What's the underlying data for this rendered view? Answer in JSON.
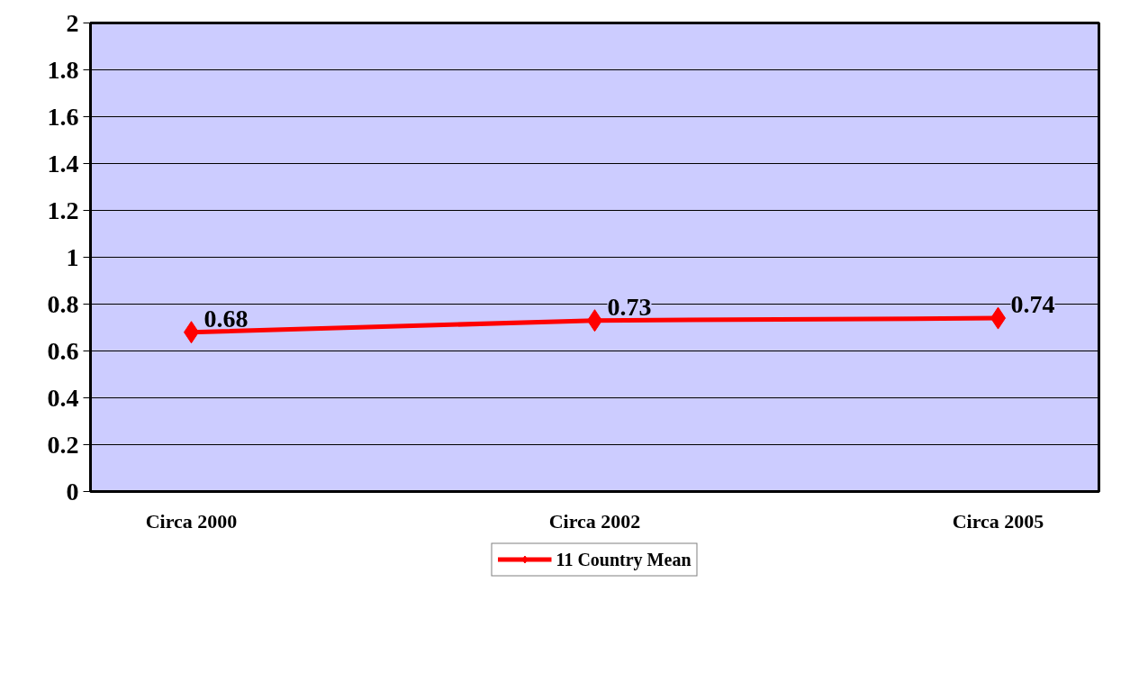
{
  "chart_data": {
    "type": "line",
    "categories": [
      "Circa 2000",
      null,
      "Circa 2002",
      null,
      "Circa 2005"
    ],
    "series": [
      {
        "name": "11 Country Mean",
        "color": "#ff0000",
        "values": [
          0.68,
          null,
          0.73,
          null,
          0.74
        ]
      }
    ],
    "ylim": [
      0,
      2
    ],
    "yticks": [
      0,
      0.2,
      0.4,
      0.6,
      0.8,
      1,
      1.2,
      1.4,
      1.6,
      1.8,
      2
    ],
    "grid": "y",
    "legend": "bottom",
    "marker": "diamond",
    "line_style": "solid",
    "data_labels": true
  }
}
